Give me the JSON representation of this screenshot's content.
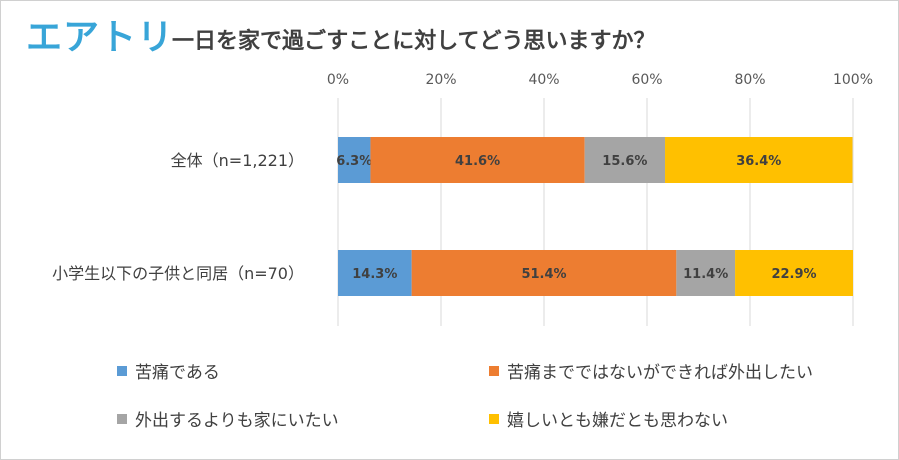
{
  "header": {
    "logo": "エアトリ",
    "title": "一日を家で過ごすことに対してどう思いますか？"
  },
  "chart_data": {
    "type": "bar",
    "orientation": "horizontal",
    "stacked": true,
    "categories": [
      "全体（n=1,221）",
      "小学生以下の子供と同居（n=70）"
    ],
    "series": [
      {
        "name": "苦痛である",
        "color": "#5b9bd5",
        "values": [
          6.3,
          14.3
        ],
        "labels": [
          "6.3%",
          "14.3%"
        ]
      },
      {
        "name": "苦痛までではないができれば外出したい",
        "color": "#ed7d31",
        "values": [
          41.6,
          51.4
        ],
        "labels": [
          "41.6%",
          "51.4%"
        ]
      },
      {
        "name": "外出するよりも家にいたい",
        "color": "#a5a5a5",
        "values": [
          15.6,
          11.4
        ],
        "labels": [
          "15.6%",
          "11.4%"
        ]
      },
      {
        "name": "嬉しいとも嫌だとも思わない",
        "color": "#ffc000",
        "values": [
          36.4,
          22.9
        ],
        "labels": [
          "36.4%",
          "22.9%"
        ]
      }
    ],
    "xlim": [
      0,
      100
    ],
    "xticks": [
      "0%",
      "20%",
      "40%",
      "60%",
      "80%",
      "100%"
    ],
    "legend": "bottom",
    "gridlines": true
  }
}
